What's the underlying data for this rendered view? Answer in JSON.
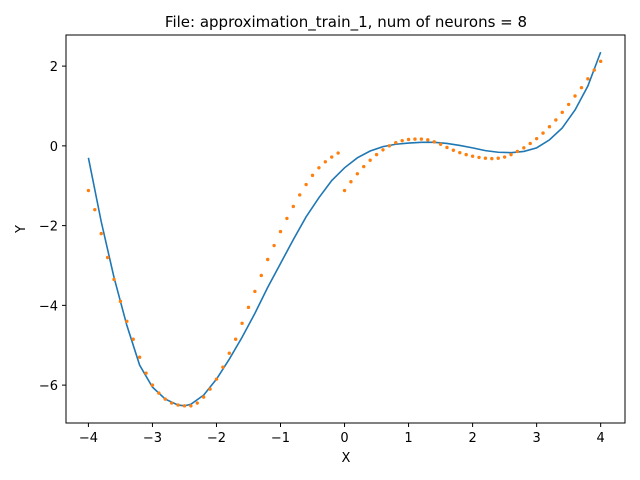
{
  "chart_data": {
    "type": "line",
    "title": "File: approximation_train_1, num of neurons = 8",
    "xlabel": "X",
    "ylabel": "Y",
    "xlim": [
      -4.35,
      4.38
    ],
    "ylim": [
      -6.95,
      2.78
    ],
    "xticks": [
      -4,
      -3,
      -2,
      -1,
      0,
      1,
      2,
      3,
      4
    ],
    "yticks": [
      -6,
      -4,
      -2,
      0,
      2
    ],
    "grid": false,
    "legend": "none",
    "series": [
      {
        "style": "line",
        "color": "#1f77b4",
        "x": [
          -4.0,
          -3.8,
          -3.6,
          -3.4,
          -3.2,
          -3.0,
          -2.8,
          -2.6,
          -2.5,
          -2.4,
          -2.2,
          -2.0,
          -1.8,
          -1.6,
          -1.4,
          -1.2,
          -1.0,
          -0.8,
          -0.6,
          -0.4,
          -0.2,
          0.0,
          0.2,
          0.4,
          0.6,
          0.8,
          1.0,
          1.2,
          1.4,
          1.6,
          1.8,
          2.0,
          2.2,
          2.4,
          2.6,
          2.8,
          3.0,
          3.2,
          3.4,
          3.6,
          3.8,
          4.0
        ],
        "y": [
          -0.3,
          -1.9,
          -3.3,
          -4.5,
          -5.5,
          -6.05,
          -6.35,
          -6.5,
          -6.52,
          -6.48,
          -6.25,
          -5.85,
          -5.35,
          -4.8,
          -4.2,
          -3.55,
          -2.95,
          -2.35,
          -1.78,
          -1.3,
          -0.87,
          -0.55,
          -0.3,
          -0.13,
          -0.02,
          0.04,
          0.07,
          0.09,
          0.09,
          0.06,
          0.01,
          -0.05,
          -0.12,
          -0.16,
          -0.17,
          -0.14,
          -0.05,
          0.15,
          0.45,
          0.9,
          1.5,
          2.35
        ]
      },
      {
        "style": "dots",
        "color": "#ff7f0e",
        "x": [
          -4.0,
          -3.9,
          -3.8,
          -3.7,
          -3.6,
          -3.5,
          -3.4,
          -3.3,
          -3.2,
          -3.1,
          -3.0,
          -2.9,
          -2.8,
          -2.7,
          -2.6,
          -2.5,
          -2.4,
          -2.3,
          -2.2,
          -2.1,
          -2.0,
          -1.9,
          -1.8,
          -1.7,
          -1.6,
          -1.5,
          -1.4,
          -1.3,
          -1.2,
          -1.1,
          -1.0,
          -0.9,
          -0.8,
          -0.7,
          -0.6,
          -0.5,
          -0.4,
          -0.3,
          -0.2,
          -0.1,
          0.0,
          0.1,
          0.2,
          0.3,
          0.4,
          0.5,
          0.6,
          0.7,
          0.8,
          0.9,
          1.0,
          1.1,
          1.2,
          1.3,
          1.4,
          1.5,
          1.6,
          1.7,
          1.8,
          1.9,
          2.0,
          2.1,
          2.2,
          2.3,
          2.4,
          2.5,
          2.6,
          2.7,
          2.8,
          2.9,
          3.0,
          3.1,
          3.2,
          3.3,
          3.4,
          3.5,
          3.6,
          3.7,
          3.8,
          3.9,
          4.0
        ],
        "y": [
          -1.12,
          -1.6,
          -2.2,
          -2.8,
          -3.35,
          -3.9,
          -4.4,
          -4.85,
          -5.3,
          -5.7,
          -6.0,
          -6.2,
          -6.35,
          -6.45,
          -6.5,
          -6.52,
          -6.52,
          -6.45,
          -6.3,
          -6.1,
          -5.85,
          -5.55,
          -5.2,
          -4.85,
          -4.45,
          -4.05,
          -3.65,
          -3.25,
          -2.85,
          -2.5,
          -2.15,
          -1.82,
          -1.52,
          -1.23,
          -0.97,
          -0.74,
          -0.55,
          -0.4,
          -0.28,
          -0.18,
          -1.12,
          -0.9,
          -0.7,
          -0.52,
          -0.36,
          -0.22,
          -0.1,
          0.0,
          0.08,
          0.13,
          0.16,
          0.17,
          0.17,
          0.15,
          0.1,
          0.04,
          -0.04,
          -0.11,
          -0.17,
          -0.22,
          -0.26,
          -0.29,
          -0.31,
          -0.32,
          -0.31,
          -0.28,
          -0.22,
          -0.14,
          -0.05,
          0.06,
          0.18,
          0.32,
          0.48,
          0.65,
          0.84,
          1.04,
          1.25,
          1.46,
          1.68,
          1.9,
          2.12
        ]
      }
    ]
  }
}
